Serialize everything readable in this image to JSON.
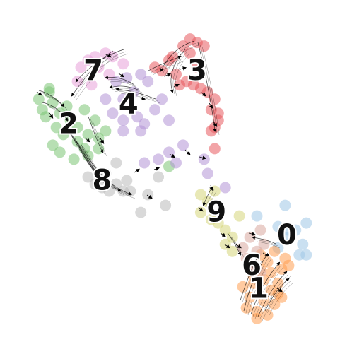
{
  "chart_data": {
    "type": "scatter",
    "title": "",
    "xlabel": "",
    "ylabel": "",
    "xlim": [
      0,
      100
    ],
    "ylim": [
      0,
      100
    ],
    "grid": false,
    "legend": "none",
    "overlay": "velocity-streamlines",
    "clusters": [
      {
        "label": "0",
        "color": "#9ec6e6",
        "label_pos": [
          81.5,
          33.5
        ],
        "points": [
          [
            73,
            39
          ],
          [
            81,
            42
          ],
          [
            87,
            37
          ],
          [
            84,
            35
          ],
          [
            79,
            30
          ],
          [
            85,
            28
          ],
          [
            87,
            28
          ],
          [
            82,
            35
          ],
          [
            79,
            36
          ],
          [
            86,
            31
          ],
          [
            81,
            33
          ]
        ]
      },
      {
        "label": "1",
        "color": "#ff9f52",
        "label_pos": [
          73.5,
          18.5
        ],
        "points": [
          [
            73,
            12
          ],
          [
            75,
            15
          ],
          [
            77,
            18
          ],
          [
            79,
            20
          ],
          [
            80,
            24
          ],
          [
            81,
            27
          ],
          [
            70,
            13
          ],
          [
            72,
            20
          ],
          [
            74,
            24
          ],
          [
            76,
            26
          ],
          [
            78,
            14
          ],
          [
            71,
            16
          ],
          [
            69,
            19
          ],
          [
            75,
            21
          ],
          [
            77,
            23
          ],
          [
            79,
            17
          ],
          [
            73,
            10
          ],
          [
            76,
            11
          ],
          [
            80,
            16
          ],
          [
            72,
            22
          ],
          [
            82,
            25
          ],
          [
            74,
            28
          ],
          [
            78,
            29
          ]
        ]
      },
      {
        "label": "2",
        "color": "#7cc474",
        "label_pos": [
          19.5,
          65
        ],
        "points": [
          [
            11,
            72
          ],
          [
            14,
            74
          ],
          [
            15,
            71
          ],
          [
            17,
            68
          ],
          [
            20,
            66
          ],
          [
            22,
            64
          ],
          [
            25,
            62
          ],
          [
            28,
            61
          ],
          [
            24,
            58
          ],
          [
            22,
            60
          ],
          [
            18,
            62
          ],
          [
            16,
            64
          ],
          [
            15,
            59
          ],
          [
            17,
            57
          ],
          [
            21,
            55
          ],
          [
            25,
            56
          ],
          [
            13,
            67
          ],
          [
            19,
            70
          ],
          [
            27,
            66
          ],
          [
            30,
            63
          ],
          [
            24,
            69
          ],
          [
            28,
            58
          ],
          [
            48,
            53
          ],
          [
            12,
            69
          ],
          [
            14,
            75
          ]
        ]
      },
      {
        "label": "3",
        "color": "#e8595e",
        "label_pos": [
          56,
          80
        ],
        "points": [
          [
            54,
            89
          ],
          [
            56,
            88
          ],
          [
            52,
            87
          ],
          [
            58,
            87
          ],
          [
            49,
            84
          ],
          [
            46,
            80
          ],
          [
            44,
            81
          ],
          [
            50,
            79
          ],
          [
            53,
            77
          ],
          [
            55,
            76
          ],
          [
            57,
            75
          ],
          [
            59,
            74
          ],
          [
            61,
            72
          ],
          [
            60,
            69
          ],
          [
            62,
            66
          ],
          [
            61,
            64
          ],
          [
            60,
            63
          ],
          [
            62,
            68
          ],
          [
            56,
            81
          ],
          [
            51,
            76
          ],
          [
            48,
            83
          ],
          [
            54,
            85
          ],
          [
            61,
            58
          ]
        ]
      },
      {
        "label": "4",
        "color": "#b394d6",
        "label_pos": [
          36.5,
          70.5
        ],
        "points": [
          [
            33,
            77
          ],
          [
            36,
            78
          ],
          [
            40,
            79
          ],
          [
            42,
            77
          ],
          [
            38,
            74
          ],
          [
            35,
            72
          ],
          [
            30,
            72
          ],
          [
            32,
            68
          ],
          [
            35,
            66
          ],
          [
            39,
            67
          ],
          [
            41,
            65
          ],
          [
            44,
            69
          ],
          [
            46,
            72
          ],
          [
            35,
            63
          ],
          [
            40,
            63
          ],
          [
            48,
            66
          ],
          [
            52,
            59
          ],
          [
            48,
            57
          ],
          [
            45,
            55
          ],
          [
            41,
            54
          ],
          [
            58,
            55
          ],
          [
            59,
            51
          ],
          [
            64,
            47
          ],
          [
            50,
            54
          ]
        ]
      },
      {
        "label": "6",
        "color": "#d9a89e",
        "label_pos": [
          71.5,
          25
        ],
        "points": [
          [
            71,
            33
          ],
          [
            74,
            35
          ],
          [
            69,
            30
          ],
          [
            73,
            29
          ],
          [
            75,
            31
          ],
          [
            70,
            27
          ],
          [
            72,
            25
          ],
          [
            74,
            23
          ]
        ]
      },
      {
        "label": "7",
        "color": "#e8a0d8",
        "label_pos": [
          26.5,
          80
        ],
        "points": [
          [
            25,
            83
          ],
          [
            27,
            84
          ],
          [
            30,
            85
          ],
          [
            32,
            84
          ],
          [
            23,
            81
          ],
          [
            28,
            81
          ],
          [
            31,
            79
          ],
          [
            35,
            82
          ],
          [
            22,
            77
          ],
          [
            26,
            76
          ]
        ]
      },
      {
        "label": "8",
        "color": "#b9b9b9",
        "label_pos": [
          29,
          49
        ],
        "points": [
          [
            25,
            50
          ],
          [
            27,
            48
          ],
          [
            29,
            47
          ],
          [
            31,
            46
          ],
          [
            33,
            48
          ],
          [
            35,
            46
          ],
          [
            37,
            46
          ],
          [
            33,
            54
          ],
          [
            40,
            40
          ],
          [
            42,
            45
          ],
          [
            47,
            42
          ],
          [
            45,
            50
          ],
          [
            30,
            51
          ],
          [
            36,
            49
          ]
        ]
      },
      {
        "label": "9",
        "color": "#d6d67a",
        "label_pos": [
          61.5,
          40
        ],
        "points": [
          [
            57,
            45
          ],
          [
            59,
            43
          ],
          [
            57,
            40
          ],
          [
            60,
            38
          ],
          [
            62,
            37
          ],
          [
            64,
            35
          ],
          [
            66,
            33
          ],
          [
            64,
            31
          ],
          [
            66,
            29
          ],
          [
            68,
            39
          ],
          [
            61,
            46
          ]
        ]
      }
    ]
  }
}
